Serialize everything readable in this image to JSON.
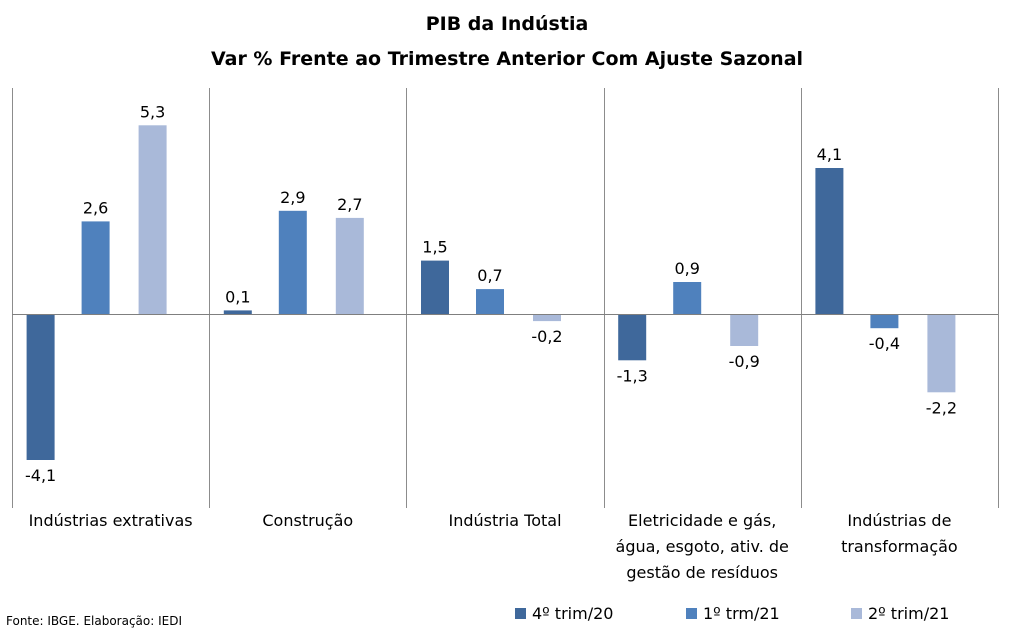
{
  "chart_data": {
    "type": "bar",
    "title": "PIB da Indústia",
    "subtitle": "Var % Frente ao Trimestre Anterior Com Ajuste Sazonal",
    "categories": [
      [
        "Indústrias extrativas"
      ],
      [
        "Construção"
      ],
      [
        "Indústria Total"
      ],
      [
        "Eletricidade e gás,",
        "água, esgoto, ativ. de",
        "gestão de resíduos"
      ],
      [
        "Indústrias de",
        "transformação"
      ]
    ],
    "series": [
      {
        "name": "4º trim/20",
        "color": "#3F689B",
        "values": [
          -4.1,
          0.1,
          1.5,
          -1.3,
          4.1
        ],
        "labels": [
          "-4,1",
          "0,1",
          "1,5",
          "-1,3",
          "4,1"
        ]
      },
      {
        "name": "1º trm/21",
        "color": "#4F81BD",
        "values": [
          2.6,
          2.9,
          0.7,
          0.9,
          -0.4
        ],
        "labels": [
          "2,6",
          "2,9",
          "0,7",
          "0,9",
          "-0,4"
        ]
      },
      {
        "name": "2º trim/21",
        "color": "#A9B9D9",
        "values": [
          5.3,
          2.7,
          -0.2,
          -0.9,
          -2.2
        ],
        "labels": [
          "5,3",
          "2,7",
          "-0,2",
          "-0,9",
          "-2,2"
        ]
      }
    ],
    "ylim": [
      -5.0,
      6.3
    ],
    "grid": false,
    "legend": "bottom-right"
  },
  "source": "Fonte: IBGE. Elaboração: IEDI"
}
